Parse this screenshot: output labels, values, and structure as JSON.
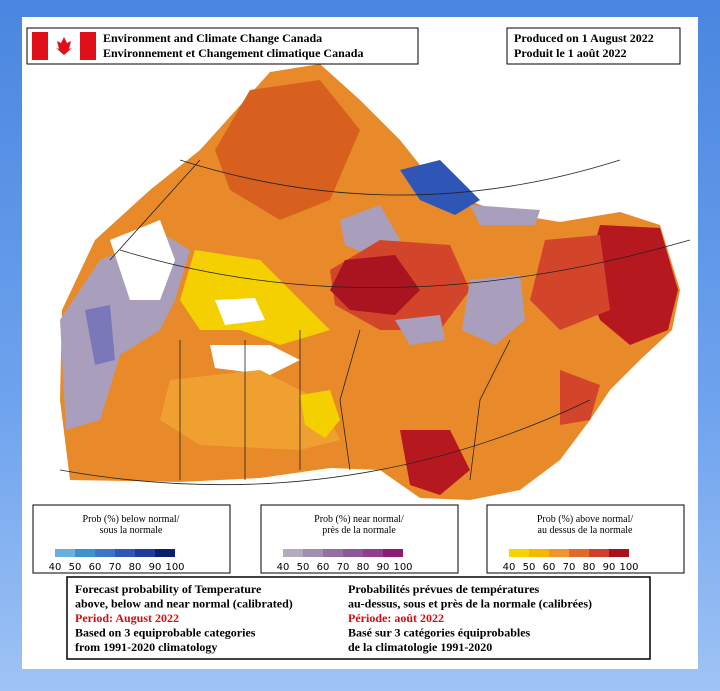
{
  "header": {
    "agency": [
      "Environment and Climate Change Canada",
      "Environnement et Changement climatique Canada"
    ],
    "produced": [
      "Produced on 1 August 2022",
      "Produit le 1 août 2022"
    ]
  },
  "legends": [
    {
      "title": [
        "Prob (%) below normal/",
        "sous la normale"
      ],
      "colors": [
        "#6bb0dc",
        "#3f92d0",
        "#3d74c8",
        "#2f55b6",
        "#1f3a98",
        "#0c1f6e"
      ],
      "ticks": [
        40,
        50,
        60,
        70,
        80,
        90,
        100
      ]
    },
    {
      "title": [
        "Prob (%) near normal/",
        "près de la normale"
      ],
      "colors": [
        "#b4aac0",
        "#a08fae",
        "#936fa2",
        "#8c5898",
        "#8f3f8d",
        "#8a1c78"
      ],
      "ticks": [
        40,
        50,
        60,
        70,
        80,
        90,
        100
      ]
    },
    {
      "title": [
        "Prob (%) above normal/",
        "au dessus de la normale"
      ],
      "colors": [
        "#f5d400",
        "#f5b800",
        "#f0952e",
        "#e2692a",
        "#d13e2e",
        "#a8101c"
      ],
      "ticks": [
        40,
        50,
        60,
        70,
        80,
        90,
        100
      ]
    }
  ],
  "caption": {
    "english": [
      "Forecast probability of Temperature",
      "above, below and near normal (calibrated)",
      "Period: August 2022",
      "Based on 3 equiprobable categories",
      " from 1991-2020 climatology"
    ],
    "french": [
      "Probabilités prévues de températures",
      "au-dessus, sous et près de la normale (calibrées)",
      "Période: août 2022",
      "Basé sur 3 catégories équiprobables",
      "de la climatologie 1991-2020"
    ]
  }
}
